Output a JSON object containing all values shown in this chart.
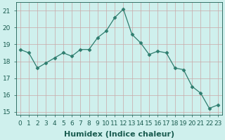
{
  "x": [
    0,
    1,
    2,
    3,
    4,
    5,
    6,
    7,
    8,
    9,
    10,
    11,
    12,
    13,
    14,
    15,
    16,
    17,
    18,
    19,
    20,
    21,
    22,
    23
  ],
  "y": [
    18.7,
    18.5,
    17.6,
    17.9,
    18.2,
    18.5,
    18.3,
    18.7,
    18.7,
    19.4,
    19.8,
    20.6,
    21.1,
    19.6,
    19.1,
    18.4,
    18.6,
    18.5,
    17.6,
    17.5,
    16.5,
    16.1,
    15.2,
    15.4
  ],
  "xlabel": "Humidex (Indice chaleur)",
  "ylabel": "",
  "xlim": [
    -0.5,
    23.5
  ],
  "ylim": [
    14.8,
    21.5
  ],
  "yticks": [
    15,
    16,
    17,
    18,
    19,
    20,
    21
  ],
  "xticks": [
    0,
    1,
    2,
    3,
    4,
    5,
    6,
    7,
    8,
    9,
    10,
    11,
    12,
    13,
    14,
    15,
    16,
    17,
    18,
    19,
    20,
    21,
    22,
    23
  ],
  "line_color": "#2e7d6e",
  "marker": "D",
  "bg_color": "#cff0ed",
  "grid_color_v": "#c8a8a8",
  "grid_color_h": "#c8a8a8",
  "xlabel_fontsize": 8,
  "tick_fontsize": 6.5,
  "label_color": "#1a5c50"
}
